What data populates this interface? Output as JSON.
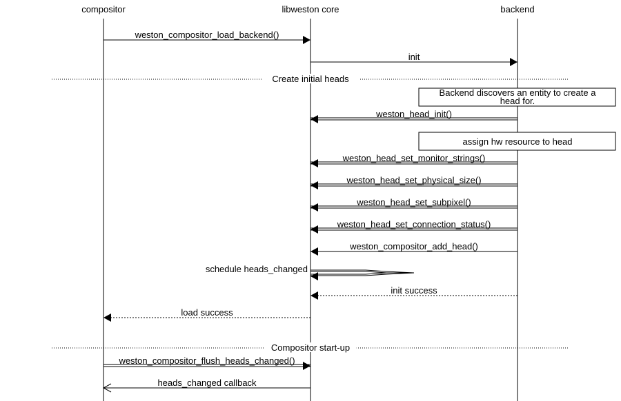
{
  "entities": [
    "compositor",
    "libweston core",
    "backend"
  ],
  "events": [
    {
      "kind": "call",
      "from": 0,
      "to": 1,
      "label": "weston_compositor_load_backend()"
    },
    {
      "kind": "call",
      "from": 1,
      "to": 2,
      "label": "init"
    },
    {
      "kind": "divider",
      "label": "Create initial heads"
    },
    {
      "kind": "box",
      "lines": [
        "Backend discovers an entity to create a",
        "head for."
      ]
    },
    {
      "kind": "method",
      "from": 2,
      "to": 1,
      "label": "weston_head_init()"
    },
    {
      "kind": "box",
      "lines": [
        "assign hw resource to head"
      ]
    },
    {
      "kind": "method",
      "from": 2,
      "to": 1,
      "label": "weston_head_set_monitor_strings()"
    },
    {
      "kind": "method",
      "from": 2,
      "to": 1,
      "label": "weston_head_set_physical_size()"
    },
    {
      "kind": "method",
      "from": 2,
      "to": 1,
      "label": "weston_head_set_subpixel()"
    },
    {
      "kind": "method",
      "from": 2,
      "to": 1,
      "label": "weston_head_set_connection_status()"
    },
    {
      "kind": "call",
      "from": 2,
      "to": 1,
      "label": "weston_compositor_add_head()"
    },
    {
      "kind": "self",
      "from": 1,
      "to": 1,
      "label": "schedule heads_changed"
    },
    {
      "kind": "return",
      "from": 2,
      "to": 1,
      "label": "init success"
    },
    {
      "kind": "return",
      "from": 1,
      "to": 0,
      "label": "load success"
    },
    {
      "kind": "divider",
      "label": "Compositor start-up"
    },
    {
      "kind": "method",
      "from": 0,
      "to": 1,
      "label": "weston_compositor_flush_heads_changed()"
    },
    {
      "kind": "signal",
      "from": 1,
      "to": 0,
      "label": "heads_changed callback"
    }
  ]
}
